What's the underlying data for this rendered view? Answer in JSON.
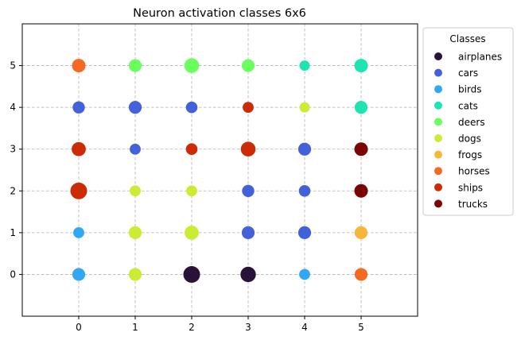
{
  "chart_data": {
    "type": "scatter",
    "title": "Neuron activation classes 6x6",
    "xlabel": "",
    "ylabel": "",
    "xlim": [
      -1,
      6
    ],
    "ylim": [
      -1,
      6
    ],
    "x_ticks": [
      "0",
      "1",
      "2",
      "3",
      "4",
      "5"
    ],
    "y_ticks": [
      "0",
      "1",
      "2",
      "3",
      "4",
      "5"
    ],
    "grid": true,
    "legend": {
      "title": "Classes",
      "placement": "outside-right-top",
      "entries": [
        {
          "name": "airplanes",
          "color": "#2a1137"
        },
        {
          "name": "cars",
          "color": "#4361d8"
        },
        {
          "name": "birds",
          "color": "#31a8f3"
        },
        {
          "name": "cats",
          "color": "#1ee4b1"
        },
        {
          "name": "deers",
          "color": "#6bfe5f"
        },
        {
          "name": "dogs",
          "color": "#cbec35"
        },
        {
          "name": "frogs",
          "color": "#f6b639"
        },
        {
          "name": "horses",
          "color": "#f56a22"
        },
        {
          "name": "ships",
          "color": "#cb2c05"
        },
        {
          "name": "trucks",
          "color": "#7b0505"
        }
      ]
    },
    "points": [
      {
        "x": 0,
        "y": 0,
        "class": "birds",
        "size": 0.7
      },
      {
        "x": 1,
        "y": 0,
        "class": "dogs",
        "size": 0.7
      },
      {
        "x": 2,
        "y": 0,
        "class": "airplanes",
        "size": 1.0
      },
      {
        "x": 3,
        "y": 0,
        "class": "airplanes",
        "size": 0.9
      },
      {
        "x": 4,
        "y": 0,
        "class": "birds",
        "size": 0.55
      },
      {
        "x": 5,
        "y": 0,
        "class": "horses",
        "size": 0.7
      },
      {
        "x": 0,
        "y": 1,
        "class": "birds",
        "size": 0.55
      },
      {
        "x": 1,
        "y": 1,
        "class": "dogs",
        "size": 0.7
      },
      {
        "x": 2,
        "y": 1,
        "class": "dogs",
        "size": 0.8
      },
      {
        "x": 3,
        "y": 1,
        "class": "cars",
        "size": 0.7
      },
      {
        "x": 4,
        "y": 1,
        "class": "cars",
        "size": 0.7
      },
      {
        "x": 5,
        "y": 1,
        "class": "frogs",
        "size": 0.7
      },
      {
        "x": 0,
        "y": 2,
        "class": "ships",
        "size": 1.0
      },
      {
        "x": 1,
        "y": 2,
        "class": "dogs",
        "size": 0.55
      },
      {
        "x": 2,
        "y": 2,
        "class": "dogs",
        "size": 0.55
      },
      {
        "x": 3,
        "y": 2,
        "class": "cars",
        "size": 0.65
      },
      {
        "x": 4,
        "y": 2,
        "class": "cars",
        "size": 0.6
      },
      {
        "x": 5,
        "y": 2,
        "class": "trucks",
        "size": 0.75
      },
      {
        "x": 0,
        "y": 3,
        "class": "ships",
        "size": 0.8
      },
      {
        "x": 1,
        "y": 3,
        "class": "cars",
        "size": 0.55
      },
      {
        "x": 2,
        "y": 3,
        "class": "ships",
        "size": 0.6
      },
      {
        "x": 3,
        "y": 3,
        "class": "ships",
        "size": 0.85
      },
      {
        "x": 4,
        "y": 3,
        "class": "cars",
        "size": 0.7
      },
      {
        "x": 5,
        "y": 3,
        "class": "trucks",
        "size": 0.75
      },
      {
        "x": 0,
        "y": 4,
        "class": "cars",
        "size": 0.65
      },
      {
        "x": 1,
        "y": 4,
        "class": "cars",
        "size": 0.7
      },
      {
        "x": 2,
        "y": 4,
        "class": "cars",
        "size": 0.6
      },
      {
        "x": 3,
        "y": 4,
        "class": "ships",
        "size": 0.55
      },
      {
        "x": 4,
        "y": 4,
        "class": "dogs",
        "size": 0.5
      },
      {
        "x": 5,
        "y": 4,
        "class": "cats",
        "size": 0.7
      },
      {
        "x": 0,
        "y": 5,
        "class": "horses",
        "size": 0.75
      },
      {
        "x": 1,
        "y": 5,
        "class": "deers",
        "size": 0.7
      },
      {
        "x": 2,
        "y": 5,
        "class": "deers",
        "size": 0.85
      },
      {
        "x": 3,
        "y": 5,
        "class": "deers",
        "size": 0.7
      },
      {
        "x": 4,
        "y": 5,
        "class": "cats",
        "size": 0.5
      },
      {
        "x": 5,
        "y": 5,
        "class": "cats",
        "size": 0.75
      }
    ]
  }
}
